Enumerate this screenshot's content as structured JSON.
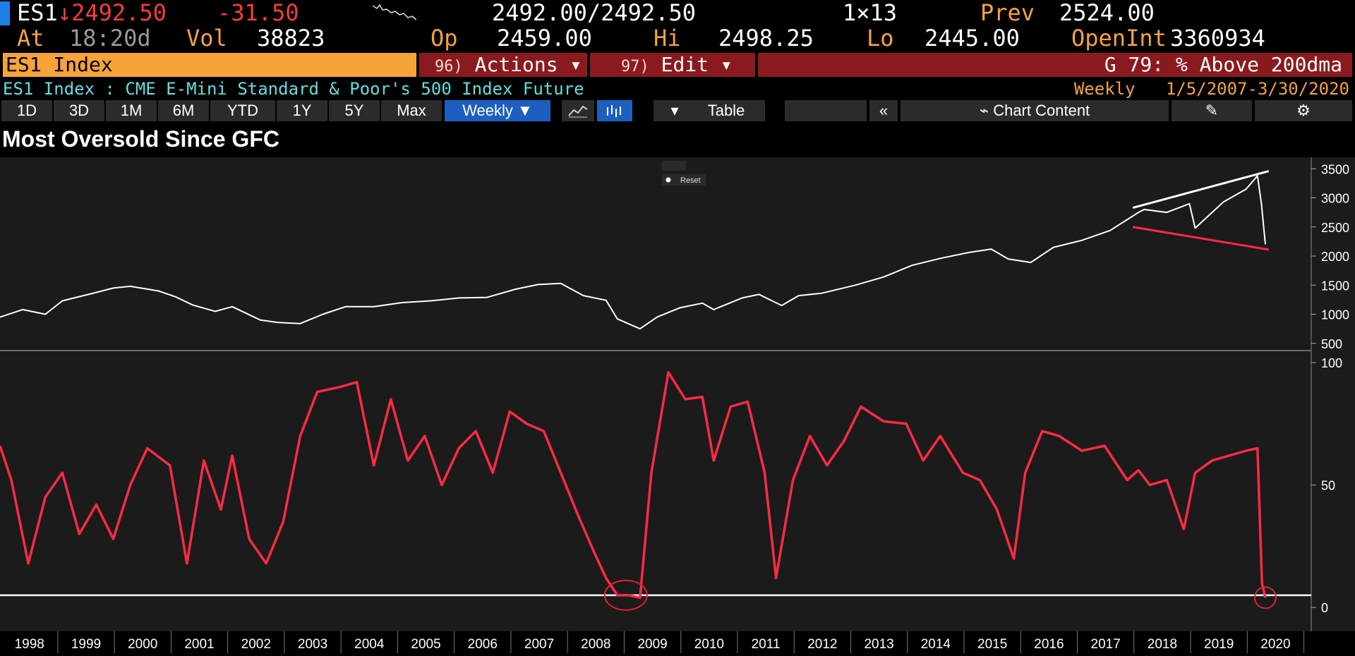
{
  "quote": {
    "ticker": "ES1",
    "arrow": "↓",
    "last": "2492.50",
    "change": "-31.50",
    "bid_ask": "2492.00/2492.50",
    "size": "1×13",
    "prev_label": "Prev",
    "prev": "2524.00",
    "at_label": "At",
    "time": "18:20d",
    "vol_label": "Vol",
    "vol": "38823",
    "open_label": "Op",
    "open": "2459.00",
    "high_label": "Hi",
    "high": "2498.25",
    "low_label": "Lo",
    "low": "2445.00",
    "openint_label": "OpenInt",
    "openint": "3360934"
  },
  "menubar": {
    "security": "ES1 Index",
    "actions_num": "96)",
    "actions": "Actions ▾",
    "edit_num": "97)",
    "edit": "Edit ▾",
    "right": "G 79: % Above 200dma"
  },
  "description": {
    "left": "ES1 Index : CME E-Mini Standard & Poor's 500 Index Future",
    "period": "Weekly",
    "range": "1/5/2007-3/30/2020"
  },
  "toolbar": {
    "periods": [
      "1D",
      "3D",
      "1M",
      "6M",
      "YTD",
      "1Y",
      "5Y",
      "Max"
    ],
    "frequency": "Weekly ▼",
    "table": "Table",
    "collapse": "«",
    "chart_content": "Chart Content",
    "reset": "Reset"
  },
  "title": "Most Oversold Since GFC",
  "colors": {
    "price": "#ffffff",
    "indicator": "#ff2a45",
    "trend_upper": "#ffffff",
    "trend_lower": "#ff2a45",
    "highlight": "#e0212d"
  },
  "chart_data": [
    {
      "type": "line",
      "series": [
        {
          "x": [
            1997.9,
            1998.3,
            1998.7,
            1999.0,
            1999.5,
            1999.9,
            2000.2,
            2000.7,
            2001.0,
            2001.3,
            2001.7,
            2002.0,
            2002.5,
            2002.8,
            2003.2,
            2003.6,
            2004.0,
            2004.5,
            2005.0,
            2005.5,
            2006.0,
            2006.5,
            2007.0,
            2007.4,
            2007.8,
            2008.2,
            2008.6,
            2008.8,
            2009.2,
            2009.5,
            2009.9,
            2010.3,
            2010.5,
            2011.0,
            2011.3,
            2011.7,
            2012.0,
            2012.4,
            2013.0,
            2013.5,
            2014.0,
            2014.5,
            2015.0,
            2015.4,
            2015.7,
            2016.1,
            2016.5,
            2017.0,
            2017.5,
            2018.0,
            2018.1,
            2018.5,
            2018.9,
            2019.0,
            2019.5,
            2019.9,
            2020.1,
            2020.17,
            2020.24
          ],
          "values": [
            950,
            1080,
            1000,
            1230,
            1350,
            1450,
            1480,
            1400,
            1300,
            1160,
            1050,
            1130,
            900,
            860,
            840,
            1000,
            1130,
            1130,
            1200,
            1230,
            1280,
            1290,
            1430,
            1510,
            1530,
            1320,
            1240,
            920,
            750,
            950,
            1110,
            1190,
            1080,
            1280,
            1340,
            1150,
            1320,
            1360,
            1500,
            1640,
            1840,
            1960,
            2060,
            2120,
            1950,
            1890,
            2150,
            2270,
            2440,
            2750,
            2800,
            2750,
            2900,
            2480,
            2930,
            3150,
            3380,
            2900,
            2200
          ]
        }
      ],
      "ylim": [
        400,
        3600
      ],
      "yticks": [
        500,
        1000,
        1500,
        2000,
        2500,
        3000,
        3500
      ],
      "trendlines": [
        {
          "name": "upper",
          "x": [
            2017.9,
            2020.3
          ],
          "values": [
            2830,
            3460
          ]
        },
        {
          "name": "lower",
          "x": [
            2017.9,
            2020.3
          ],
          "values": [
            2500,
            2110
          ]
        }
      ]
    },
    {
      "type": "line",
      "series": [
        {
          "x": [
            1997.9,
            1998.1,
            1998.4,
            1998.7,
            1999.0,
            1999.3,
            1999.6,
            1999.9,
            2000.2,
            2000.5,
            2000.9,
            2001.2,
            2001.5,
            2001.8,
            2002.0,
            2002.3,
            2002.6,
            2002.9,
            2003.2,
            2003.5,
            2003.9,
            2004.2,
            2004.5,
            2004.8,
            2005.1,
            2005.4,
            2005.7,
            2006.0,
            2006.3,
            2006.6,
            2006.9,
            2007.2,
            2007.5,
            2007.8,
            2008.1,
            2008.4,
            2008.6,
            2008.8,
            2009.0,
            2009.2,
            2009.4,
            2009.7,
            2010.0,
            2010.3,
            2010.5,
            2010.8,
            2011.1,
            2011.4,
            2011.6,
            2011.9,
            2012.2,
            2012.5,
            2012.8,
            2013.1,
            2013.5,
            2013.9,
            2014.2,
            2014.5,
            2014.9,
            2015.2,
            2015.5,
            2015.8,
            2016.0,
            2016.3,
            2016.6,
            2017.0,
            2017.4,
            2017.8,
            2018.0,
            2018.2,
            2018.5,
            2018.8,
            2019.0,
            2019.3,
            2019.6,
            2019.9,
            2020.1,
            2020.18,
            2020.24
          ],
          "values": [
            66,
            52,
            18,
            45,
            55,
            30,
            42,
            28,
            50,
            65,
            58,
            18,
            60,
            40,
            62,
            28,
            18,
            35,
            70,
            88,
            90,
            92,
            58,
            85,
            60,
            70,
            50,
            65,
            72,
            55,
            80,
            75,
            72,
            55,
            38,
            22,
            12,
            5,
            5,
            4,
            55,
            96,
            85,
            86,
            60,
            82,
            84,
            55,
            12,
            52,
            70,
            58,
            68,
            82,
            76,
            75,
            60,
            70,
            55,
            52,
            40,
            20,
            55,
            72,
            70,
            64,
            66,
            52,
            56,
            50,
            52,
            32,
            55,
            60,
            62,
            64,
            65,
            10,
            4
          ]
        }
      ],
      "ylim": [
        -8,
        102
      ],
      "yticks": [
        0,
        50,
        100
      ],
      "reference_line": 5
    }
  ],
  "xaxis": {
    "labels": [
      "1998",
      "1999",
      "2000",
      "2001",
      "2002",
      "2003",
      "2004",
      "2005",
      "2006",
      "2007",
      "2008",
      "2009",
      "2010",
      "2011",
      "2012",
      "2013",
      "2014",
      "2015",
      "2016",
      "2017",
      "2018",
      "2019",
      "2020"
    ],
    "xlim": [
      1997.9,
      2021.05
    ]
  }
}
